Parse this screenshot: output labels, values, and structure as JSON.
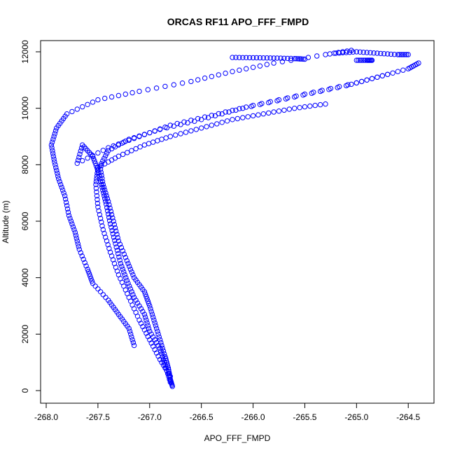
{
  "chart_data": {
    "type": "scatter",
    "title": "ORCAS RF11 APO_FFF_FMPD",
    "xlabel": "APO_FFF_FMPD",
    "ylabel": "Altitude (m)",
    "xlim": [
      -268.0,
      -264.4
    ],
    "ylim": [
      0,
      12000
    ],
    "x_ticks": [
      -268.0,
      -267.5,
      -267.0,
      -266.5,
      -266.0,
      -265.5,
      -265.0,
      -264.5
    ],
    "x_tick_labels": [
      "-268.0",
      "-267.5",
      "-267.0",
      "-266.5",
      "-266.0",
      "-265.5",
      "-265.0",
      "-264.5"
    ],
    "y_ticks": [
      0,
      2000,
      4000,
      6000,
      8000,
      10000,
      12000
    ],
    "y_tick_labels": [
      "0",
      "2000",
      "4000",
      "6000",
      "8000",
      "10000",
      "12000"
    ],
    "grid": false,
    "marker": "open-circle",
    "color": "#0000ff",
    "series": [
      {
        "points": [
          [
            -267.15,
            1600
          ],
          [
            -267.2,
            2200
          ],
          [
            -267.3,
            2700
          ],
          [
            -267.4,
            3200
          ],
          [
            -267.55,
            3800
          ],
          [
            -267.6,
            4300
          ],
          [
            -267.68,
            5000
          ],
          [
            -267.72,
            5600
          ],
          [
            -267.78,
            6200
          ],
          [
            -267.82,
            6900
          ],
          [
            -267.88,
            7500
          ],
          [
            -267.92,
            8100
          ],
          [
            -267.95,
            8700
          ],
          [
            -267.9,
            9300
          ],
          [
            -267.8,
            9800
          ],
          [
            -267.5,
            10300
          ],
          [
            -267.1,
            10600
          ],
          [
            -266.6,
            10950
          ],
          [
            -266.2,
            11300
          ],
          [
            -265.8,
            11600
          ],
          [
            -265.3,
            11900
          ],
          [
            -265.05,
            12050
          ]
        ]
      },
      {
        "points": [
          [
            -266.78,
            150
          ],
          [
            -266.8,
            400
          ],
          [
            -266.82,
            800
          ],
          [
            -266.85,
            1200
          ],
          [
            -266.9,
            1800
          ],
          [
            -266.95,
            2400
          ],
          [
            -267.0,
            3000
          ],
          [
            -267.05,
            3500
          ],
          [
            -267.15,
            4000
          ],
          [
            -267.22,
            4600
          ],
          [
            -267.3,
            5300
          ],
          [
            -267.35,
            6000
          ],
          [
            -267.4,
            6700
          ],
          [
            -267.45,
            7300
          ],
          [
            -267.48,
            7950
          ],
          [
            -267.4,
            8500
          ],
          [
            -267.2,
            8900
          ],
          [
            -266.9,
            9250
          ],
          [
            -266.5,
            9600
          ],
          [
            -266.1,
            10000
          ],
          [
            -265.6,
            10400
          ],
          [
            -265.1,
            10800
          ],
          [
            -264.8,
            11100
          ],
          [
            -264.5,
            11400
          ],
          [
            -264.4,
            11600
          ]
        ]
      },
      {
        "points": [
          [
            -266.8,
            300
          ],
          [
            -266.85,
            900
          ],
          [
            -266.9,
            1500
          ],
          [
            -267.0,
            2100
          ],
          [
            -267.05,
            2700
          ],
          [
            -267.15,
            3300
          ],
          [
            -267.22,
            3900
          ],
          [
            -267.28,
            4500
          ],
          [
            -267.33,
            5200
          ],
          [
            -267.38,
            5900
          ],
          [
            -267.42,
            6600
          ],
          [
            -267.46,
            7200
          ],
          [
            -267.5,
            7800
          ],
          [
            -267.55,
            8300
          ],
          [
            -267.65,
            8700
          ],
          [
            -267.7,
            8050
          ],
          [
            -267.4,
            8600
          ],
          [
            -267.1,
            9000
          ],
          [
            -266.8,
            9400
          ],
          [
            -266.4,
            9750
          ],
          [
            -266.0,
            10100
          ],
          [
            -265.5,
            10500
          ],
          [
            -265.0,
            10900
          ],
          [
            -264.7,
            11200
          ]
        ]
      },
      {
        "points": [
          [
            -266.8,
            500
          ],
          [
            -266.9,
            1100
          ],
          [
            -267.0,
            1800
          ],
          [
            -267.1,
            2500
          ],
          [
            -267.2,
            3300
          ],
          [
            -267.3,
            4100
          ],
          [
            -267.38,
            4900
          ],
          [
            -267.45,
            5700
          ],
          [
            -267.5,
            6500
          ],
          [
            -267.52,
            7300
          ],
          [
            -267.5,
            7900
          ],
          [
            -267.3,
            8300
          ],
          [
            -267.05,
            8700
          ],
          [
            -266.8,
            9000
          ],
          [
            -266.5,
            9300
          ],
          [
            -266.2,
            9600
          ],
          [
            -265.9,
            9800
          ],
          [
            -265.6,
            10000
          ],
          [
            -265.3,
            10150
          ]
        ]
      },
      {
        "points": [
          [
            -266.2,
            11800
          ],
          [
            -266.0,
            11790
          ],
          [
            -265.8,
            11780
          ],
          [
            -265.6,
            11760
          ],
          [
            -265.5,
            11740
          ]
        ]
      },
      {
        "points": [
          [
            -265.2,
            11950
          ],
          [
            -265.0,
            12000
          ],
          [
            -264.8,
            11950
          ],
          [
            -264.6,
            11900
          ],
          [
            -264.5,
            11900
          ]
        ]
      },
      {
        "points": [
          [
            -265.0,
            11700
          ],
          [
            -264.9,
            11700
          ],
          [
            -264.85,
            11700
          ]
        ]
      }
    ]
  }
}
